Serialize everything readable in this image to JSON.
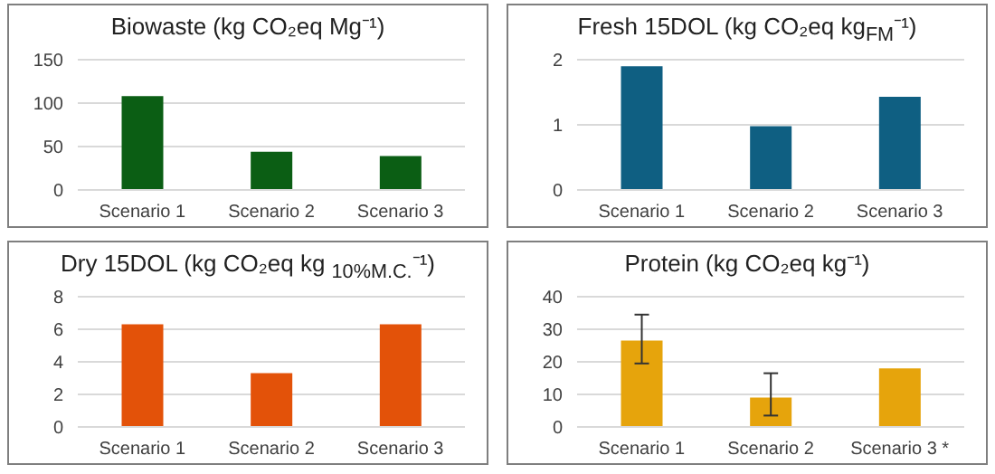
{
  "chart_data": [
    {
      "type": "bar",
      "title": "Biowaste (kg CO₂eq Mg⁻¹)",
      "categories": [
        "Scenario 1",
        "Scenario 2",
        "Scenario 3"
      ],
      "values": [
        108,
        44,
        39
      ],
      "color": "#0b5e14",
      "ylim": [
        0,
        150
      ],
      "yticks": [
        0,
        50,
        100,
        150
      ],
      "grid": "y"
    },
    {
      "type": "bar",
      "title": "Fresh 15DOL (kg CO₂eq kg$_{FM}$⁻¹)",
      "categories": [
        "Scenario 1",
        "Scenario 2",
        "Scenario 3"
      ],
      "values": [
        1.9,
        0.98,
        1.43
      ],
      "color": "#0f5f82",
      "ylim": [
        0,
        2
      ],
      "yticks": [
        0,
        1,
        2
      ],
      "grid": "y"
    },
    {
      "type": "bar",
      "title": "Dry 15DOL (kg CO₂eq kg $_{10%M.C.}$⁻¹)",
      "categories": [
        "Scenario 1",
        "Scenario 2",
        "Scenario 3"
      ],
      "values": [
        6.3,
        3.3,
        6.3
      ],
      "color": "#e35209",
      "ylim": [
        0,
        8
      ],
      "yticks": [
        0,
        2,
        4,
        6,
        8
      ],
      "grid": "y"
    },
    {
      "type": "bar",
      "title": "Protein (kg CO₂eq kg⁻¹)",
      "categories": [
        "Scenario 1",
        "Scenario 2",
        "Scenario 3 *"
      ],
      "values": [
        26.5,
        9,
        18
      ],
      "errors": [
        [
          19.5,
          34.5
        ],
        [
          3.5,
          16.5
        ],
        null
      ],
      "color": "#e6a40c",
      "ylim": [
        0,
        40
      ],
      "yticks": [
        0,
        10,
        20,
        30,
        40
      ],
      "grid": "y"
    }
  ]
}
